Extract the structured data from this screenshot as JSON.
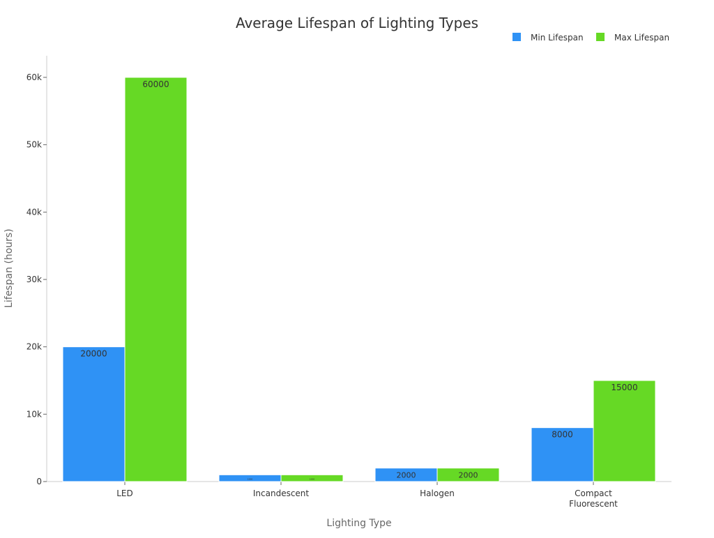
{
  "chart_data": {
    "type": "bar",
    "title": "Average Lifespan of Lighting Types",
    "xlabel": "Lighting Type",
    "ylabel": "Lifespan (hours)",
    "categories": [
      "LED",
      "Incandescent",
      "Halogen",
      "Compact Fluorescent"
    ],
    "series": [
      {
        "name": "Min Lifespan",
        "color": "#2f92f5",
        "values": [
          20000,
          1000,
          2000,
          8000
        ]
      },
      {
        "name": "Max Lifespan",
        "color": "#66d925",
        "values": [
          60000,
          1000,
          2000,
          15000
        ]
      }
    ],
    "ylim": [
      0,
      63000
    ],
    "yticks": [
      0,
      10000,
      20000,
      30000,
      40000,
      50000,
      60000
    ],
    "ytick_labels": [
      "0",
      "10k",
      "20k",
      "30k",
      "40k",
      "50k",
      "60k"
    ],
    "grid": false,
    "legend": "top-right"
  }
}
